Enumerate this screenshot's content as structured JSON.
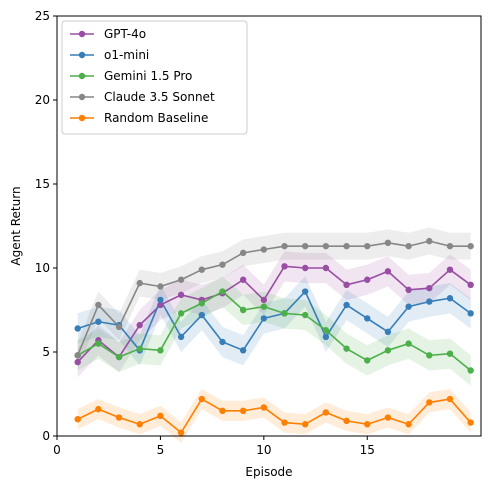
{
  "chart_data": {
    "type": "line",
    "title": "",
    "xlabel": "Episode",
    "ylabel": "Agent Return",
    "xlim": [
      0,
      20.5
    ],
    "ylim": [
      0,
      25
    ],
    "xticks": [
      0,
      5,
      10,
      15
    ],
    "yticks": [
      0,
      5,
      10,
      15,
      20,
      25
    ],
    "grid": false,
    "legend": "top-left",
    "x": [
      1,
      2,
      3,
      4,
      5,
      6,
      7,
      8,
      9,
      10,
      11,
      12,
      13,
      14,
      15,
      16,
      17,
      18,
      19,
      20
    ],
    "series": [
      {
        "name": "GPT-4o",
        "color": "#984ea3",
        "band": 0.9,
        "values": [
          4.4,
          5.7,
          4.7,
          6.6,
          7.8,
          8.4,
          8.1,
          8.5,
          9.3,
          8.1,
          10.1,
          10.0,
          10.0,
          9.0,
          9.3,
          9.8,
          8.7,
          8.8,
          9.9,
          9.0
        ]
      },
      {
        "name": "o1-mini",
        "color": "#377eb8",
        "band": 0.9,
        "values": [
          6.4,
          6.8,
          6.6,
          5.1,
          8.1,
          5.9,
          7.2,
          5.6,
          5.1,
          7.0,
          7.3,
          8.6,
          5.9,
          7.8,
          7.0,
          6.2,
          7.7,
          8.0,
          8.2,
          7.3
        ]
      },
      {
        "name": "Gemini 1.5 Pro",
        "color": "#4daf4a",
        "band": 0.9,
        "values": [
          4.8,
          5.5,
          4.7,
          5.2,
          5.1,
          7.3,
          7.9,
          8.6,
          7.5,
          7.7,
          7.3,
          7.2,
          6.3,
          5.2,
          4.5,
          5.1,
          5.5,
          4.8,
          4.9,
          3.9
        ]
      },
      {
        "name": "Claude 3.5 Sonnet",
        "color": "#878787",
        "band": 0.8,
        "values": [
          4.8,
          7.8,
          6.5,
          9.1,
          8.9,
          9.3,
          9.9,
          10.2,
          10.9,
          11.1,
          11.3,
          11.3,
          11.3,
          11.3,
          11.3,
          11.5,
          11.3,
          11.6,
          11.3,
          11.3
        ]
      },
      {
        "name": "Random Baseline",
        "color": "#ff7f00",
        "band": 0.6,
        "values": [
          1.0,
          1.6,
          1.1,
          0.7,
          1.2,
          0.2,
          2.2,
          1.5,
          1.5,
          1.7,
          0.8,
          0.7,
          1.4,
          0.9,
          0.7,
          1.1,
          0.7,
          2.0,
          2.2,
          0.8
        ]
      }
    ]
  }
}
